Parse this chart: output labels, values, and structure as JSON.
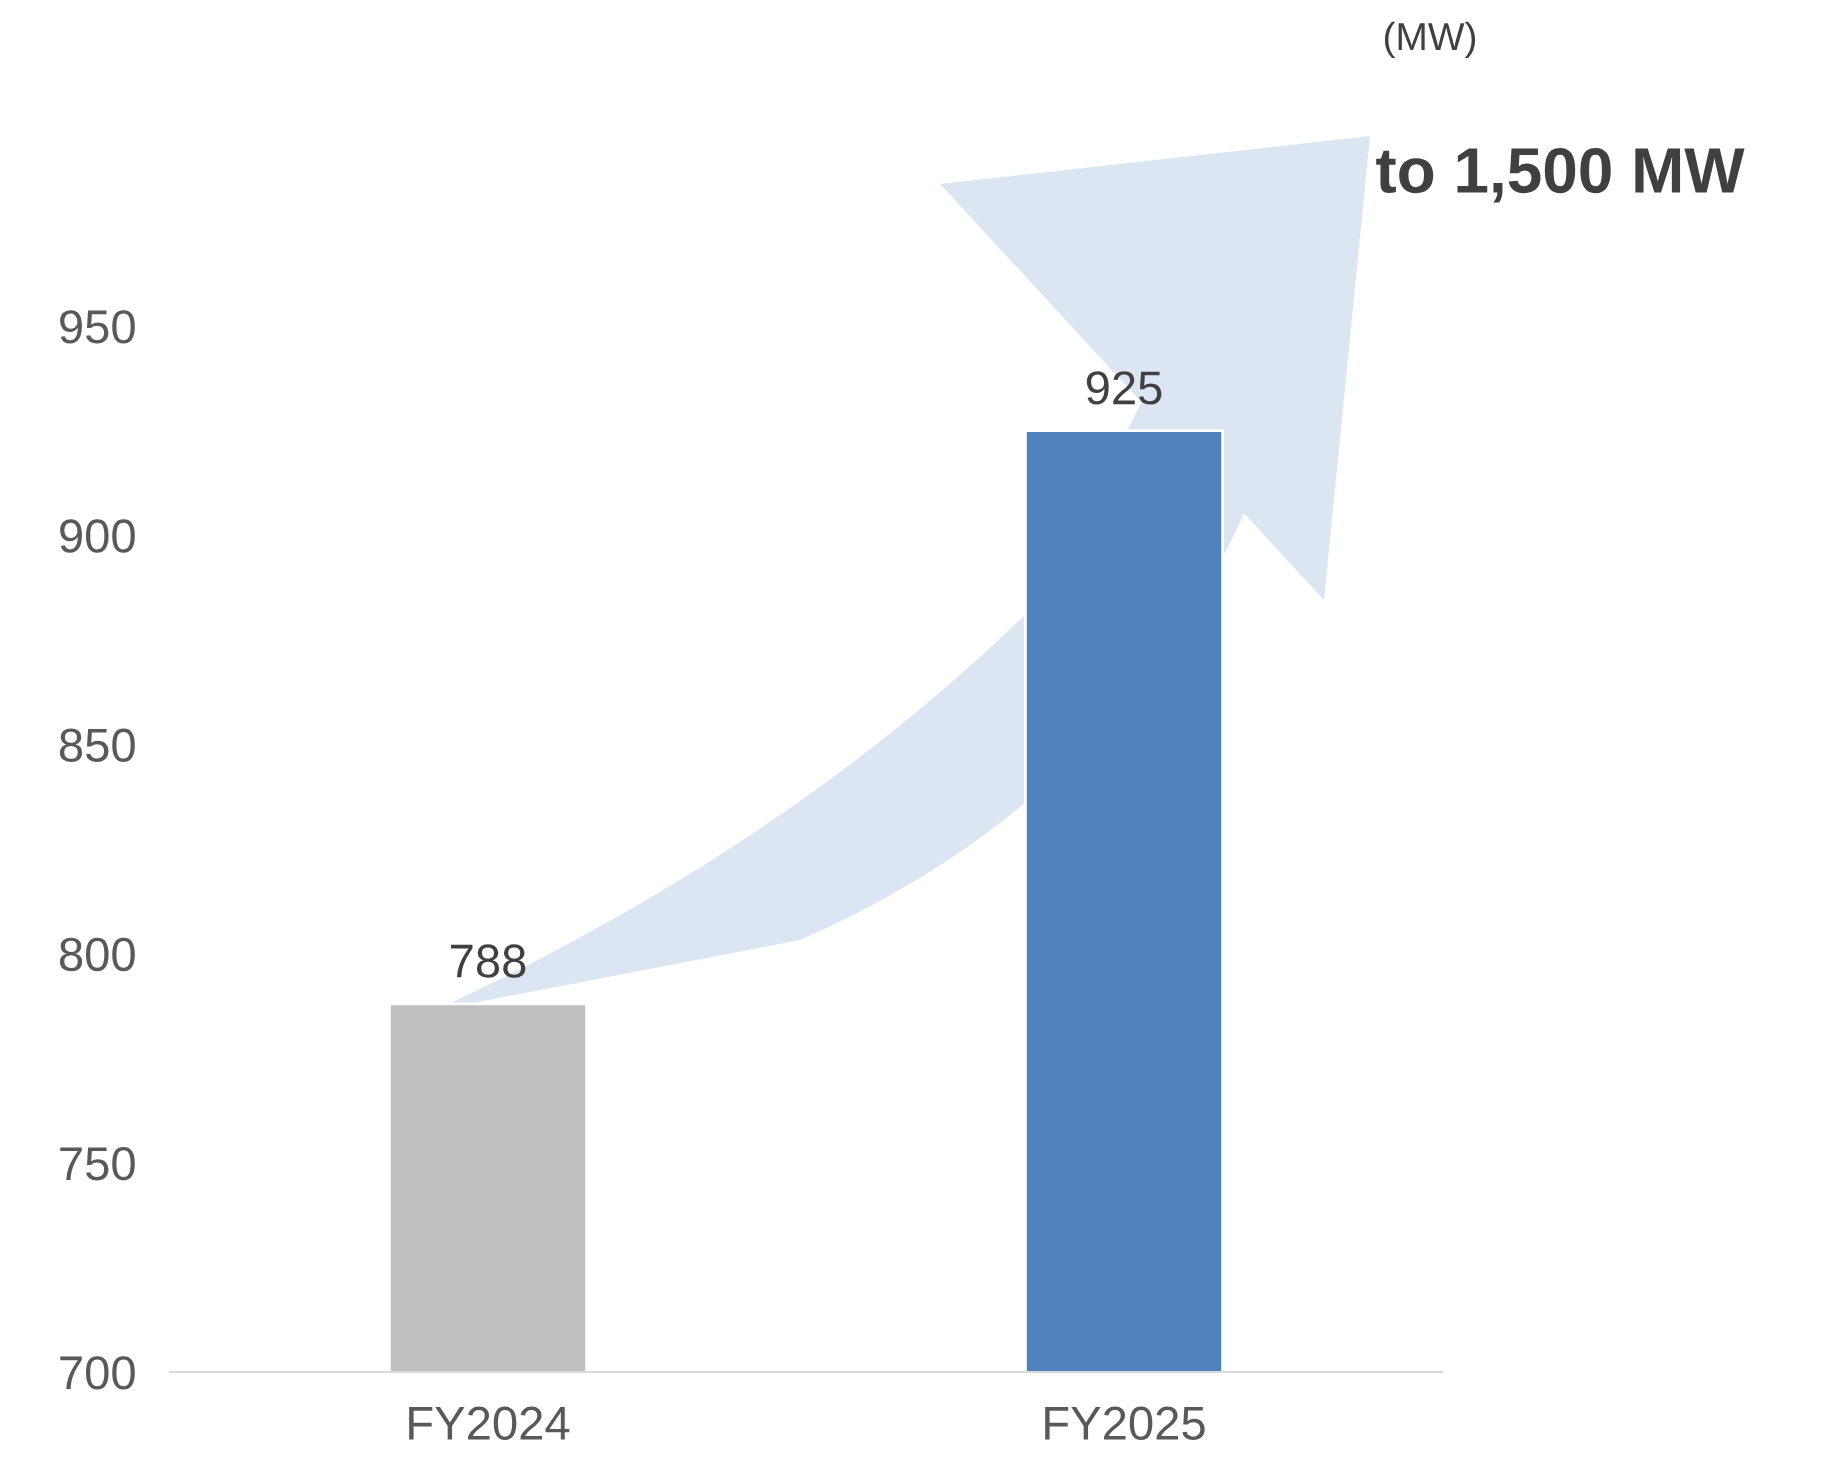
{
  "chart_data": {
    "type": "bar",
    "categories": [
      "FY2024",
      "FY2025"
    ],
    "values": [
      788,
      925
    ],
    "colors": [
      "#bfbfbf",
      "#4f81bd"
    ],
    "ylim": [
      700,
      950
    ],
    "yticks": [
      700,
      750,
      800,
      850,
      900,
      950
    ],
    "data_labels": true,
    "grid": false,
    "legend": false,
    "annotations": [
      "(MW)",
      "to 1,500 MW"
    ]
  }
}
